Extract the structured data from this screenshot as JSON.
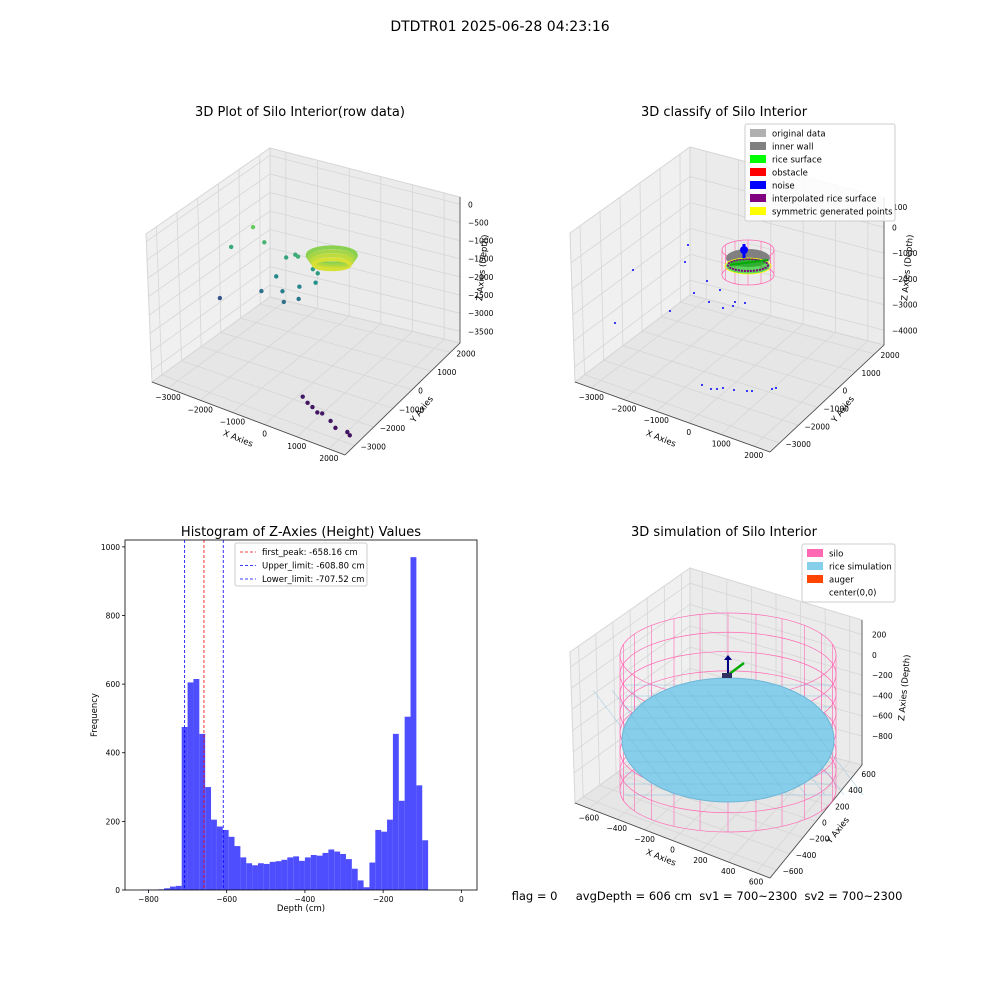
{
  "suptitle": "DTDTR01 2025-06-28 04:23:16",
  "footer": "flag = 0     avgDepth = 606 cm  sv1 = 700~2300  sv2 = 700~2300",
  "colors": {
    "hist_bar": "#4444ff",
    "peak_line": "#ff0000",
    "limit_line": "#0000ff",
    "silo": "#ff69b4",
    "rice_sim": "#87ceeb",
    "auger": "#ff4500",
    "pane": "#f2f2f2",
    "grid": "#d6d6d6"
  },
  "chart_data": [
    {
      "type": "scatter",
      "projection": "3d",
      "title": "3D Plot of Silo Interior(row data)",
      "xlabel": "X Axies",
      "ylabel": "Y Axies",
      "zlabel": "Z Axies (Depth)",
      "xticks": [
        "−3000",
        "−2000",
        "−1000",
        "0",
        "1000",
        "2000"
      ],
      "yticks": [
        "2000",
        "1000",
        "0",
        "−1000",
        "−2000",
        "−3000"
      ],
      "zticks": [
        "0",
        "−500",
        "−1000",
        "−1500",
        "−2000",
        "−2500",
        "−3000",
        "−3500"
      ],
      "xlim": [
        -3000,
        2500
      ],
      "ylim": [
        -3000,
        2500
      ],
      "zlim": [
        -3600,
        200
      ],
      "colormap": "viridis",
      "points": [
        {
          "x": -2900,
          "y": 0,
          "z": -2600
        },
        {
          "x": -2700,
          "y": 200,
          "z": -1300
        },
        {
          "x": -2200,
          "y": 400,
          "z": -700
        },
        {
          "x": -2000,
          "y": 600,
          "z": -1100
        },
        {
          "x": -1900,
          "y": 300,
          "z": -2200
        },
        {
          "x": -1600,
          "y": 500,
          "z": -1800
        },
        {
          "x": -1300,
          "y": 300,
          "z": -2000
        },
        {
          "x": -1200,
          "y": 200,
          "z": -2200
        },
        {
          "x": -1000,
          "y": 600,
          "z": -1900
        },
        {
          "x": -900,
          "y": 400,
          "z": -2100
        },
        {
          "x": -1500,
          "y": 800,
          "z": -1400
        },
        {
          "x": -1300,
          "y": 900,
          "z": -1300
        },
        {
          "x": -1100,
          "y": 700,
          "z": -1200
        },
        {
          "x": -800,
          "y": 900,
          "z": -1500
        },
        {
          "x": -600,
          "y": 700,
          "z": -1700
        },
        {
          "x": -600,
          "y": 800,
          "z": -1500
        },
        {
          "x": 500,
          "y": -1700,
          "z": -3300
        },
        {
          "x": 700,
          "y": -1800,
          "z": -3350
        },
        {
          "x": 900,
          "y": -1900,
          "z": -3350
        },
        {
          "x": 1100,
          "y": -2000,
          "z": -3380
        },
        {
          "x": 1300,
          "y": -2100,
          "z": -3300
        },
        {
          "x": 1600,
          "y": -2200,
          "z": -3350
        },
        {
          "x": 1800,
          "y": -2300,
          "z": -3420
        },
        {
          "x": 2200,
          "y": -2400,
          "z": -3350
        },
        {
          "x": 2300,
          "y": -2450,
          "z": -3380
        }
      ]
    },
    {
      "type": "scatter",
      "projection": "3d",
      "title": "3D classify of Silo Interior",
      "xlabel": "X Axies",
      "ylabel": "Y Axies",
      "zlabel": "Z Axies (Depth)",
      "xticks": [
        "−3000",
        "−2000",
        "−1000",
        "0",
        "1000",
        "2000"
      ],
      "yticks": [
        "2000",
        "1000",
        "0",
        "−1000",
        "−2000",
        "−3000"
      ],
      "zticks": [
        "0",
        "−1000",
        "−2000",
        "−3000",
        "−4000"
      ],
      "zticks_partial": [
        "100"
      ],
      "legend": [
        {
          "label": "original data",
          "color": "#b0b0b0"
        },
        {
          "label": "inner wall",
          "color": "#808080"
        },
        {
          "label": "rice surface",
          "color": "#00ff00"
        },
        {
          "label": "obstacle",
          "color": "#ff0000"
        },
        {
          "label": "noise",
          "color": "#0000ff"
        },
        {
          "label": "interpolated rice surface",
          "color": "#800080"
        },
        {
          "label": "symmetric generated points",
          "color": "#ffff00"
        }
      ],
      "legend_loc": "upper right"
    },
    {
      "type": "bar",
      "title": "Histogram of Z-Axies (Height) Values",
      "xlabel": "Depth (cm)",
      "ylabel": "Frequency",
      "xlim": [
        -860,
        40
      ],
      "ylim": [
        0,
        1020
      ],
      "xticks": [
        -800,
        -600,
        -400,
        -200,
        0
      ],
      "xtick_labels": [
        "−800",
        "−600",
        "−400",
        "−200",
        "0"
      ],
      "yticks": [
        0,
        200,
        400,
        600,
        800,
        1000
      ],
      "bin_start": -820,
      "bin_width": 15,
      "values": [
        1,
        1,
        1,
        2,
        5,
        10,
        12,
        475,
        605,
        615,
        455,
        300,
        205,
        185,
        175,
        155,
        128,
        95,
        78,
        72,
        78,
        76,
        82,
        84,
        88,
        95,
        98,
        85,
        95,
        102,
        100,
        108,
        118,
        112,
        105,
        90,
        62,
        28,
        8,
        80,
        175,
        170,
        205,
        455,
        260,
        505,
        970,
        305,
        145
      ],
      "lines": [
        {
          "label": "first_peak: -658.16 cm",
          "x": -658.16,
          "color": "#ff0000"
        },
        {
          "label": "Upper_limit: -608.80 cm",
          "x": -608.8,
          "color": "#0000ff"
        },
        {
          "label": "Lower_limit: -707.52 cm",
          "x": -707.52,
          "color": "#0000ff"
        }
      ],
      "legend_loc": "upper center"
    },
    {
      "type": "surface",
      "projection": "3d",
      "title": "3D simulation of Silo Interior",
      "xlabel": "X Axies",
      "ylabel": "Y Axies",
      "zlabel": "Z Axies (Depth)",
      "xticks": [
        "−600",
        "−400",
        "−200",
        "0",
        "200",
        "400",
        "600"
      ],
      "yticks": [
        "600",
        "400",
        "200",
        "0",
        "−200",
        "−400",
        "−600"
      ],
      "zticks": [
        "200",
        "0",
        "−200",
        "−400",
        "−600",
        "−800"
      ],
      "legend": [
        {
          "label": "silo",
          "color": "#ff69b4"
        },
        {
          "label": "rice simulation",
          "color": "#87ceeb"
        },
        {
          "label": "auger",
          "color": "#ff4500"
        },
        {
          "label": "center(0,0)",
          "color": ""
        }
      ],
      "legend_loc": "upper right"
    }
  ]
}
